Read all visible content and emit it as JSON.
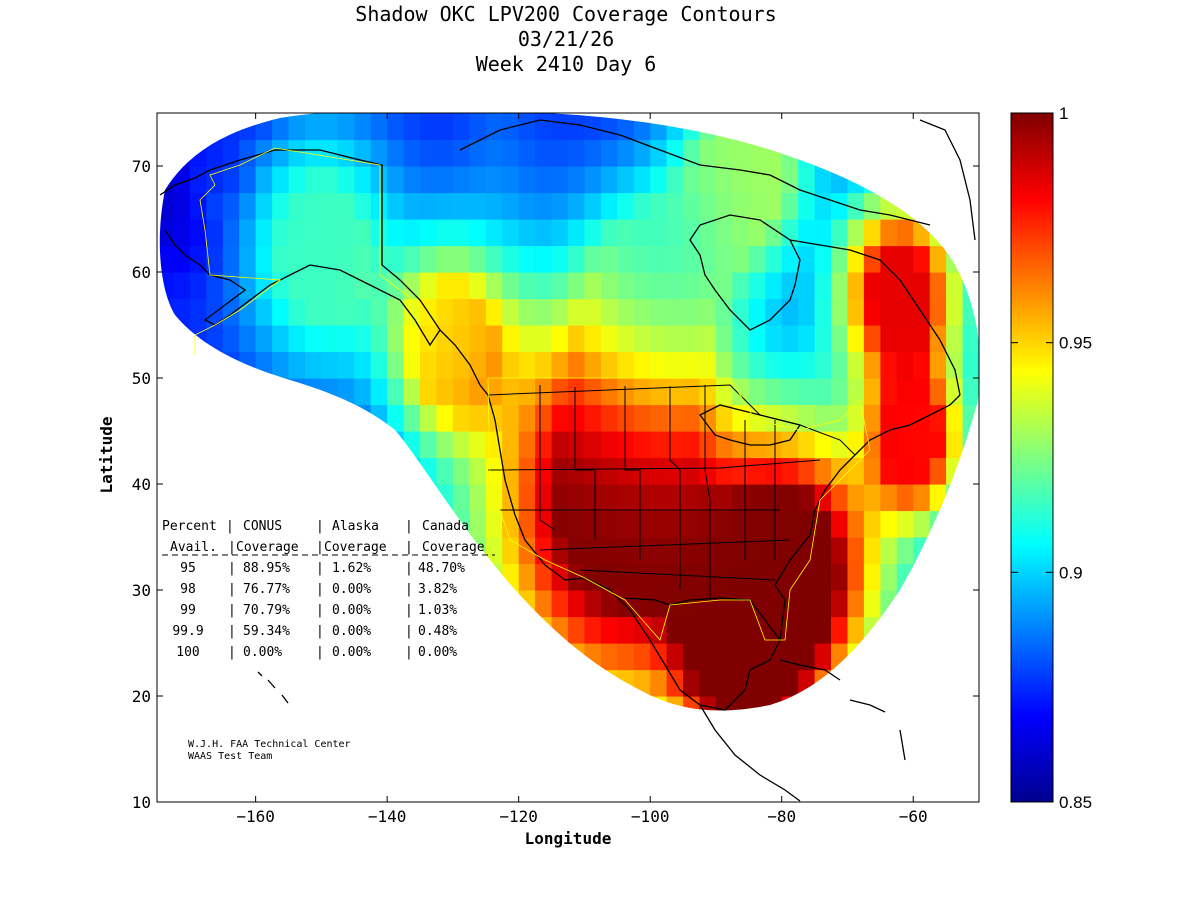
{
  "chart_data": {
    "type": "heatmap",
    "title_lines": [
      "Shadow OKC LPV200 Coverage Contours",
      "03/21/26",
      "Week 2410 Day 6"
    ],
    "xlabel": "Longitude",
    "ylabel": "Latitude",
    "xlim": [
      -175,
      -50
    ],
    "ylim": [
      10,
      75
    ],
    "xticks": [
      -160,
      -140,
      -120,
      -100,
      -80,
      -60
    ],
    "yticks": [
      10,
      20,
      30,
      40,
      50,
      60,
      70
    ],
    "colorbar": {
      "min": 0.85,
      "max": 1.0,
      "ticks": [
        0.85,
        0.9,
        0.95,
        1.0
      ],
      "tick_labels": [
        "0.85",
        "0.9",
        "0.95",
        "1"
      ]
    },
    "coverage_table": {
      "header_row1": [
        "Percent",
        "CONUS",
        "Alaska",
        "Canada"
      ],
      "header_row2": [
        "Avail.",
        "Coverage",
        "Coverage",
        "Coverage"
      ],
      "rows": [
        [
          "95",
          "88.95%",
          "1.62%",
          "48.70%"
        ],
        [
          "98",
          "76.77%",
          "0.00%",
          "3.82%"
        ],
        [
          "99",
          "70.79%",
          "0.00%",
          "1.03%"
        ],
        [
          "99.9",
          "59.34%",
          "0.00%",
          "0.48%"
        ],
        [
          "100",
          "0.00%",
          "0.00%",
          "0.00%"
        ]
      ]
    },
    "credits": [
      "W.J.H. FAA Technical Center",
      "WAAS Test Team"
    ],
    "field_centers": [
      {
        "lon": -105,
        "lat": 38,
        "value": 1.0,
        "spread": 17
      },
      {
        "lon": -78,
        "lat": 32,
        "value": 1.0,
        "spread": 11
      },
      {
        "lon": -86,
        "lat": 24,
        "value": 1.0,
        "spread": 9
      },
      {
        "lon": -62,
        "lat": 58,
        "value": 0.985,
        "spread": 8
      },
      {
        "lon": -60,
        "lat": 44,
        "value": 0.98,
        "spread": 7
      },
      {
        "lon": -130,
        "lat": 53,
        "value": 0.95,
        "spread": 9
      },
      {
        "lon": -100,
        "lat": 58,
        "value": 0.905,
        "spread": 12
      },
      {
        "lon": -150,
        "lat": 62,
        "value": 0.915,
        "spread": 12
      },
      {
        "lon": -165,
        "lat": 70,
        "value": 0.87,
        "spread": 6
      },
      {
        "lon": -85,
        "lat": 70,
        "value": 0.93,
        "spread": 10
      }
    ]
  }
}
